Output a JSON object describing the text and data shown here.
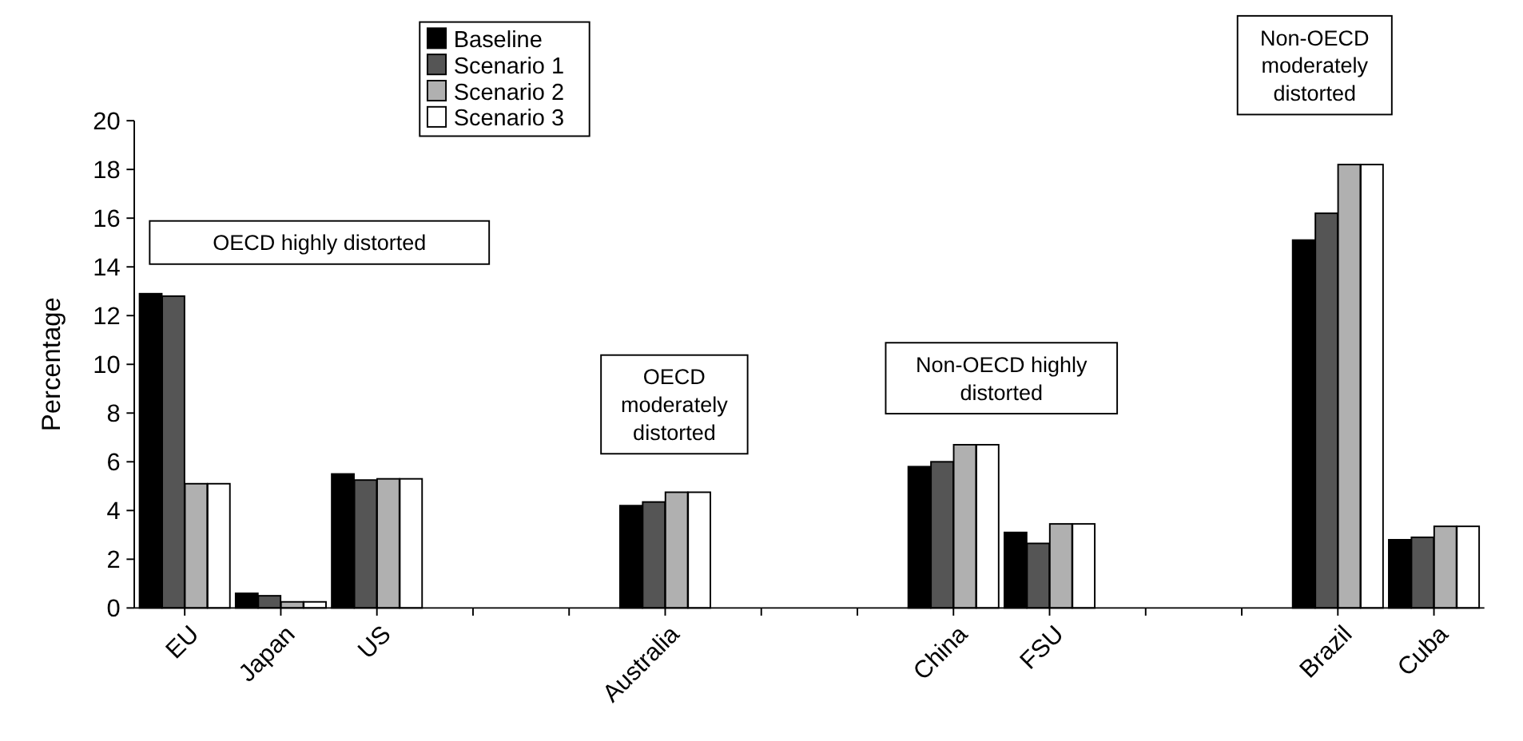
{
  "chart_data": {
    "type": "bar",
    "ylabel": "Percentage",
    "categories": [
      "EU",
      "Japan",
      "US",
      null,
      null,
      "Australia",
      null,
      null,
      "China",
      "FSU",
      null,
      null,
      "Brazil",
      "Cuba"
    ],
    "series": [
      {
        "name": "Baseline",
        "color": "#000000",
        "values": [
          12.9,
          0.6,
          5.5,
          null,
          null,
          4.2,
          null,
          null,
          5.8,
          3.1,
          null,
          null,
          15.1,
          2.8
        ]
      },
      {
        "name": "Scenario 1",
        "color": "#555555",
        "values": [
          12.8,
          0.5,
          5.25,
          null,
          null,
          4.35,
          null,
          null,
          6.0,
          2.65,
          null,
          null,
          16.2,
          2.9
        ]
      },
      {
        "name": "Scenario 2",
        "color": "#b0b0b0",
        "values": [
          5.1,
          0.25,
          5.3,
          null,
          null,
          4.75,
          null,
          null,
          6.7,
          3.45,
          null,
          null,
          18.2,
          3.35
        ]
      },
      {
        "name": "Scenario 3",
        "color": "#ffffff",
        "values": [
          5.1,
          0.25,
          5.3,
          null,
          null,
          4.75,
          null,
          null,
          6.7,
          3.45,
          null,
          null,
          18.2,
          3.35
        ]
      }
    ],
    "ylim": [
      0,
      20
    ],
    "yticks": [
      0,
      2,
      4,
      6,
      8,
      10,
      12,
      14,
      16,
      18,
      20
    ],
    "grid": false,
    "legend": "top",
    "annotations": [
      "OECD highly distorted",
      "OECD moderately distorted",
      "Non-OECD highly distorted",
      "Non-OECD moderately distorted"
    ]
  }
}
